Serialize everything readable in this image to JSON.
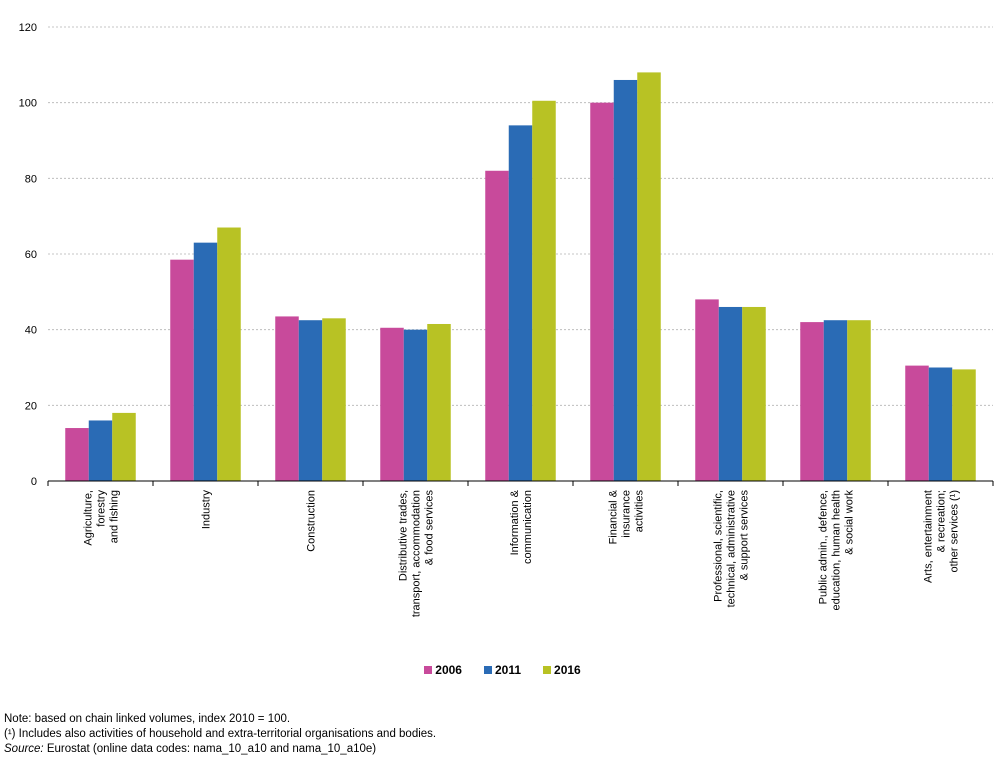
{
  "chart_data": {
    "type": "bar",
    "categories": [
      [
        "Agriculture,",
        "forestry",
        "and fishing"
      ],
      [
        "Industry"
      ],
      [
        "Construction"
      ],
      [
        "Distributive trades,",
        "transport, accommodation",
        "& food services"
      ],
      [
        "Information &",
        "communication"
      ],
      [
        "Financial &",
        "insurance",
        "activities"
      ],
      [
        "Professional, scientific,",
        "technical, administrative",
        "& support services"
      ],
      [
        "Public admin., defence,",
        "education, human health",
        "& social work"
      ],
      [
        "Arts, entertainment",
        "& recreation;",
        "other services (¹)"
      ]
    ],
    "series": [
      {
        "name": "2006",
        "color": "#c84a9b",
        "values": [
          14,
          58.5,
          43.5,
          40.5,
          82,
          100,
          48,
          42,
          30.5
        ]
      },
      {
        "name": "2011",
        "color": "#2a6bb5",
        "values": [
          16,
          63,
          42.5,
          40,
          94,
          106,
          46,
          42.5,
          30
        ]
      },
      {
        "name": "2016",
        "color": "#b8c224",
        "values": [
          18,
          67,
          43,
          41.5,
          100.5,
          108,
          46,
          42.5,
          29.5
        ]
      }
    ],
    "ylim": [
      0,
      120
    ],
    "yticks": [
      0,
      20,
      40,
      60,
      80,
      100,
      120
    ],
    "grid": true,
    "legend": "bottom-center"
  },
  "notes": {
    "note": "Note: based on chain linked volumes, index 2010 = 100.",
    "footnote": "(¹) Includes also activities of household and extra-territorial organisations and bodies.",
    "source_label": "Source:",
    "source_text": " Eurostat (online data codes: nama_10_a10 and nama_10_a10e)"
  }
}
